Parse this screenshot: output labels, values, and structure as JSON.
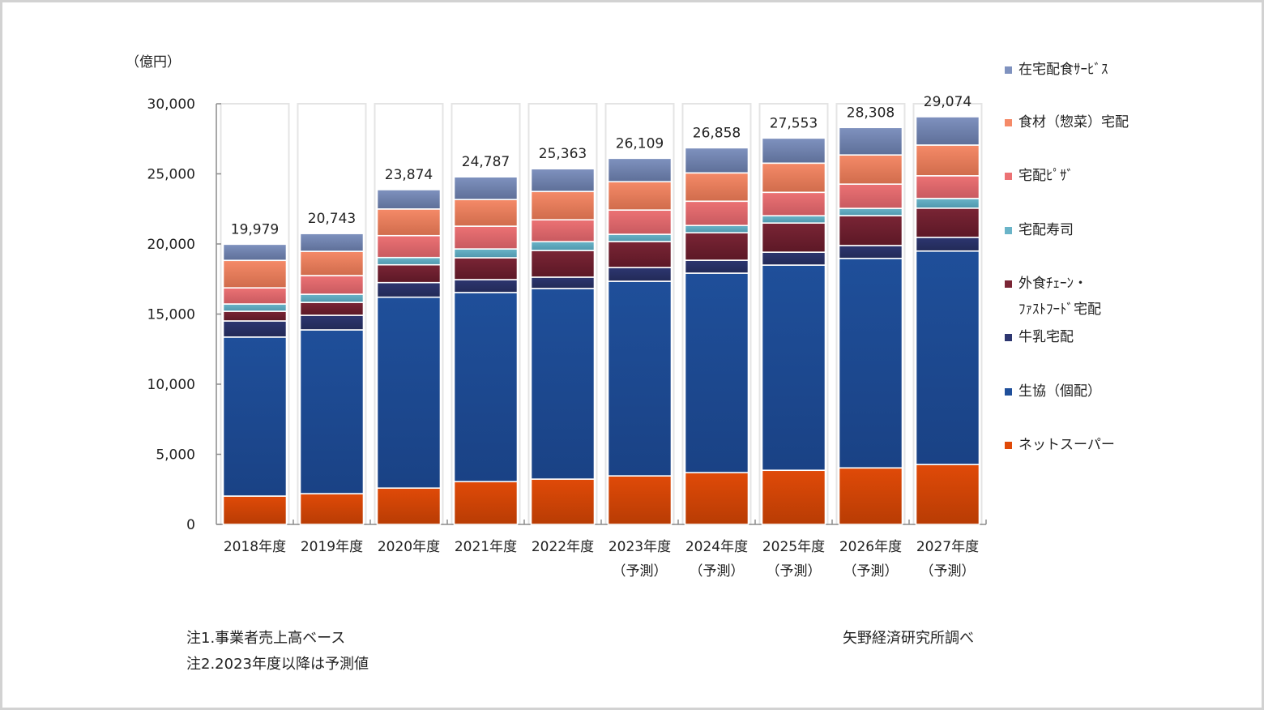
{
  "chart_data": {
    "type": "bar",
    "stacked": true,
    "title": "",
    "unit_label": "（億円）",
    "xlabel": "",
    "ylabel": "（億円）",
    "ylim": [
      0,
      30000
    ],
    "yticks": [
      0,
      5000,
      10000,
      15000,
      20000,
      25000,
      30000
    ],
    "ytick_labels": [
      "0",
      "5,000",
      "10,000",
      "15,000",
      "20,000",
      "25,000",
      "30,000"
    ],
    "grid": false,
    "legend_position": "right",
    "categories": [
      [
        "2018年度"
      ],
      [
        "2019年度"
      ],
      [
        "2020年度"
      ],
      [
        "2021年度"
      ],
      [
        "2022年度"
      ],
      [
        "2023年度",
        "（予測）"
      ],
      [
        "2024年度",
        "（予測）"
      ],
      [
        "2025年度",
        "（予測）"
      ],
      [
        "2026年度",
        "（予測）"
      ],
      [
        "2027年度",
        "（予測）"
      ]
    ],
    "totals": [
      19979,
      20743,
      23874,
      24787,
      25363,
      26109,
      26858,
      27553,
      28308,
      29074
    ],
    "total_labels": [
      "19,979",
      "20,743",
      "23,874",
      "24,787",
      "25,363",
      "26,109",
      "26,858",
      "27,553",
      "28,308",
      "29,074"
    ],
    "series": [
      {
        "name": "ネットスーパー",
        "color": "#e04a08",
        "color_dark": "#b83c04",
        "values": [
          2020,
          2190,
          2590,
          3050,
          3230,
          3460,
          3690,
          3860,
          4030,
          4270
        ]
      },
      {
        "name": "生協（個配）",
        "color": "#1f4f9a",
        "color_dark": "#1a4285",
        "values": [
          11340,
          11683,
          13614,
          13487,
          13593,
          13879,
          14228,
          14633,
          14938,
          15224
        ]
      },
      {
        "name": "牛乳宅配",
        "color": "#2d3670",
        "color_dark": "#222a57",
        "values": [
          1150,
          1040,
          1040,
          920,
          810,
          980,
          920,
          920,
          920,
          980
        ]
      },
      {
        "name": "外食チェーン・\nファストフード宅配",
        "color": "#7a2535",
        "color_dark": "#5c1826",
        "values": [
          690,
          920,
          1270,
          1560,
          1900,
          1850,
          1960,
          2080,
          2130,
          2080
        ]
      },
      {
        "name": "宅配寿司",
        "color": "#6ab4c8",
        "color_dark": "#4f97ad",
        "values": [
          520,
          580,
          520,
          630,
          630,
          520,
          520,
          520,
          520,
          690
        ]
      },
      {
        "name": "宅配ピザ",
        "color": "#ec7274",
        "color_dark": "#c85a60",
        "values": [
          1150,
          1330,
          1560,
          1620,
          1560,
          1730,
          1730,
          1670,
          1730,
          1620
        ]
      },
      {
        "name": "食材（惣菜）宅配",
        "color": "#f58a68",
        "color_dark": "#d06c4c",
        "values": [
          1960,
          1730,
          1900,
          1900,
          2020,
          2020,
          2020,
          2080,
          2080,
          2190
        ]
      },
      {
        "name": "在宅配食サービス",
        "color": "#7f92bf",
        "color_dark": "#5e6f98",
        "values": [
          1150,
          1270,
          1380,
          1620,
          1620,
          1670,
          1790,
          1790,
          1960,
          2020
        ]
      }
    ]
  },
  "legend": {
    "items": [
      {
        "label": "在宅配食ｻｰﾋﾞｽ",
        "color": "#7f92bf"
      },
      {
        "label": "食材（惣菜）宅配",
        "color": "#f58a68"
      },
      {
        "label": "宅配ﾋﾟｻﾞ",
        "color": "#ec7274"
      },
      {
        "label": "宅配寿司",
        "color": "#6ab4c8"
      },
      {
        "label": "外食ﾁｪｰﾝ・\nﾌｧｽﾄﾌｰﾄﾞ宅配",
        "color": "#7a2535"
      },
      {
        "label": "牛乳宅配",
        "color": "#2d3670"
      },
      {
        "label": "生協（個配）",
        "color": "#1f4f9a"
      },
      {
        "label": "ネットスーパー",
        "color": "#e04a08"
      }
    ]
  },
  "notes": {
    "note1": "注1.事業者売上高ベース",
    "note2": "注2.2023年度以降は予測値",
    "source": "矢野経済研究所調べ"
  }
}
